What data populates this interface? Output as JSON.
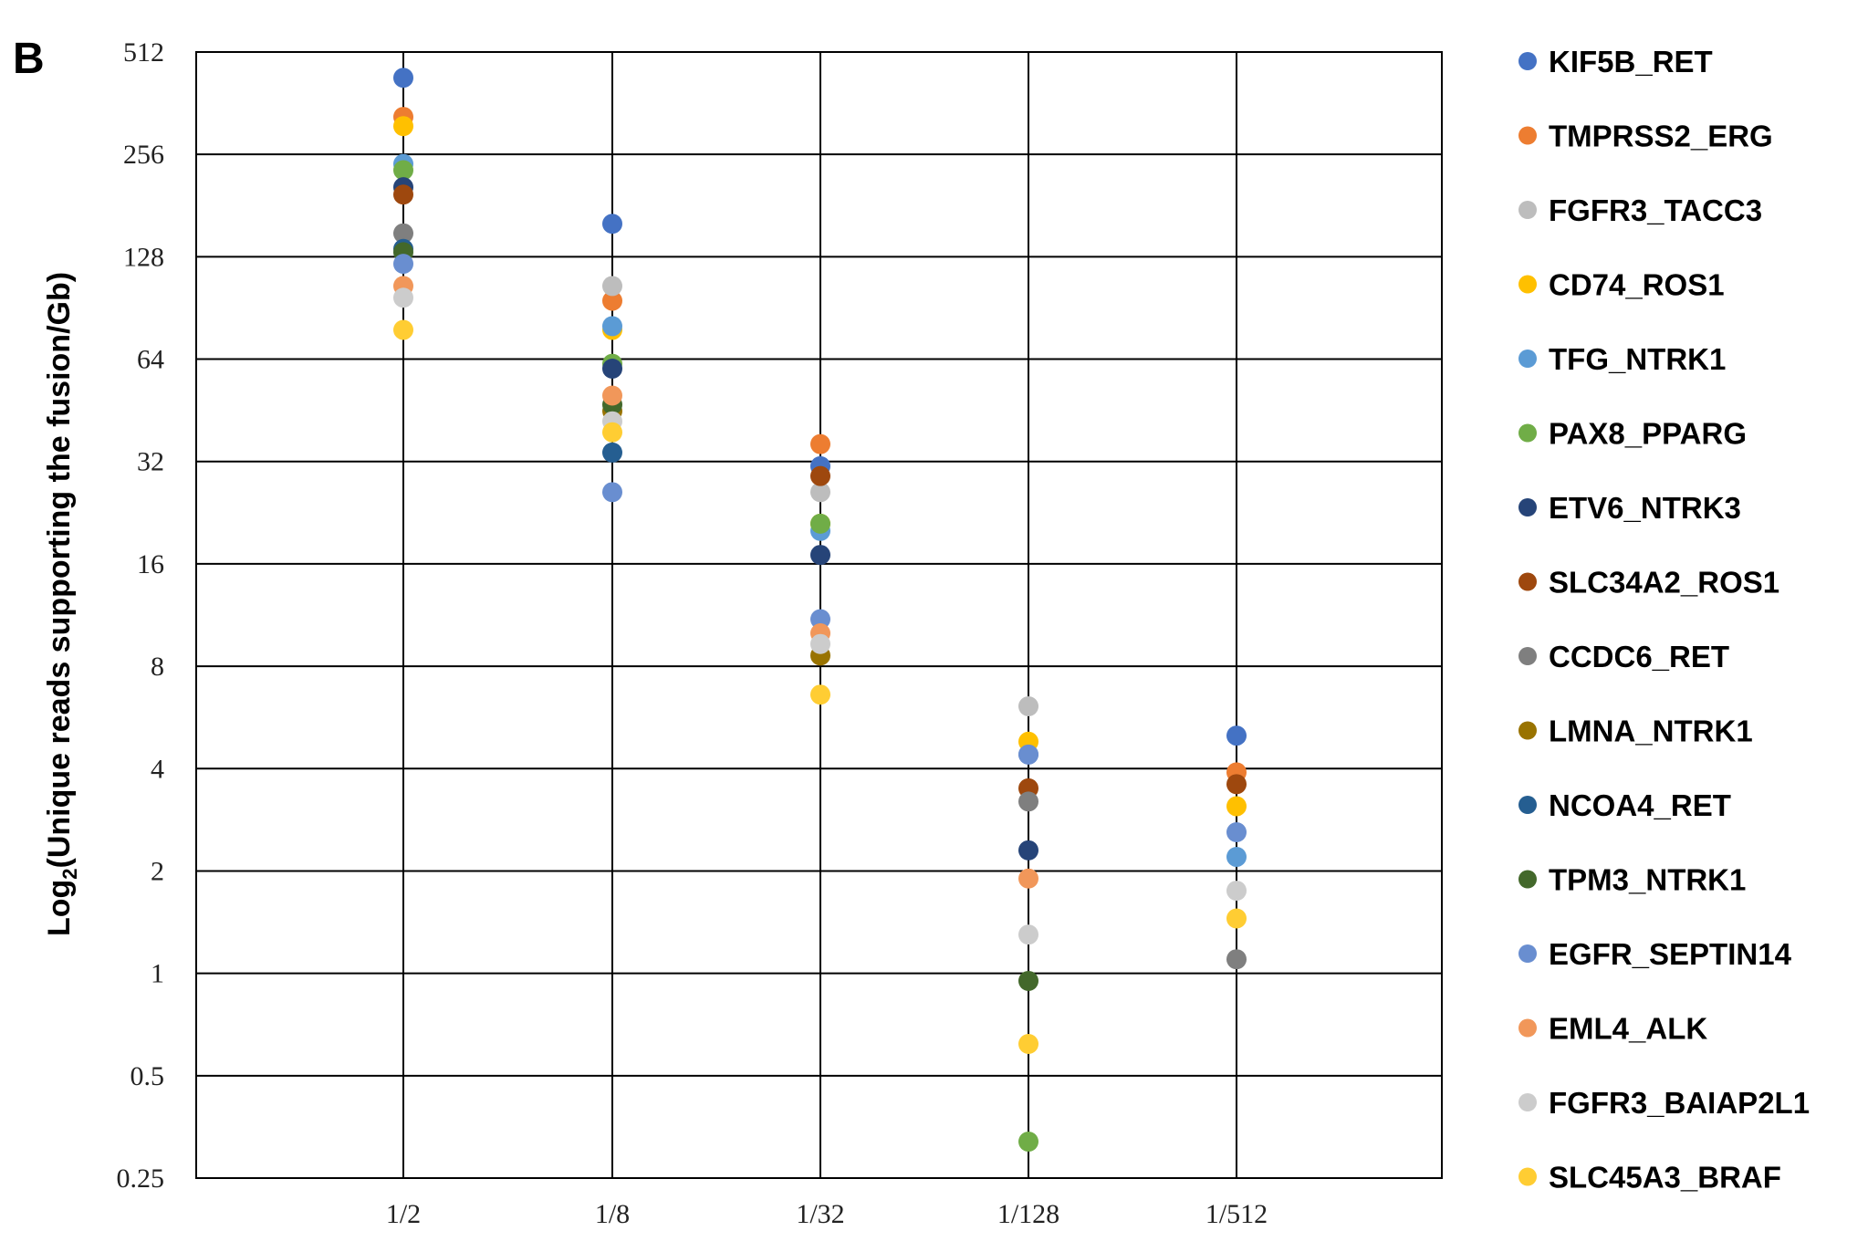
{
  "panel_label": "B",
  "chart_data": {
    "type": "scatter",
    "ylabel_prefix": "Log",
    "ylabel_sub": "2",
    "ylabel_rest": "(Unique reads supporting the fusion/Gb)",
    "y_scale": "log2",
    "ylim": [
      0.25,
      512
    ],
    "y_ticks": [
      "512",
      "256",
      "128",
      "64",
      "32",
      "16",
      "8",
      "4",
      "2",
      "1",
      "0.5",
      "0.25"
    ],
    "y_tick_values": [
      512,
      256,
      128,
      64,
      32,
      16,
      8,
      4,
      2,
      1,
      0.5,
      0.25
    ],
    "categories": [
      "1/2",
      "1/8",
      "1/32",
      "1/128",
      "1/512"
    ],
    "grid": true,
    "legend_position": "right",
    "series": [
      {
        "name": "KIF5B_RET",
        "color": "#4472C4",
        "values": [
          430,
          160,
          31,
          4.4,
          5.0
        ]
      },
      {
        "name": "TMPRSS2_ERG",
        "color": "#ED7D31",
        "values": [
          330,
          95,
          36,
          null,
          3.9
        ]
      },
      {
        "name": "FGFR3_TACC3",
        "color": "#BDBDBD",
        "values": [
          null,
          105,
          26,
          6.1,
          null
        ]
      },
      {
        "name": "CD74_ROS1",
        "color": "#FFC000",
        "values": [
          310,
          78,
          21,
          4.8,
          3.1
        ]
      },
      {
        "name": "TFG_NTRK1",
        "color": "#5B9BD5",
        "values": [
          240,
          80,
          20,
          null,
          2.2
        ]
      },
      {
        "name": "PAX8_PPARG",
        "color": "#70AD47",
        "values": [
          230,
          62,
          21,
          0.32,
          null
        ]
      },
      {
        "name": "ETV6_NTRK3",
        "color": "#264478",
        "values": [
          205,
          60,
          17,
          2.3,
          null
        ]
      },
      {
        "name": "SLC34A2_ROS1",
        "color": "#9E480E",
        "values": [
          195,
          null,
          29,
          3.5,
          3.6
        ]
      },
      {
        "name": "CCDC6_RET",
        "color": "#7F7F7F",
        "values": [
          150,
          null,
          null,
          3.2,
          1.1
        ]
      },
      {
        "name": "LMNA_NTRK1",
        "color": "#997300",
        "values": [
          null,
          45,
          8.6,
          null,
          null
        ]
      },
      {
        "name": "NCOA4_RET",
        "color": "#255E91",
        "values": [
          135,
          34,
          null,
          null,
          null
        ]
      },
      {
        "name": "TPM3_NTRK1",
        "color": "#43682B",
        "values": [
          132,
          47,
          null,
          0.95,
          null
        ]
      },
      {
        "name": "EGFR_SEPTIN14",
        "color": "#698ED0",
        "values": [
          122,
          26,
          11,
          4.4,
          2.6
        ]
      },
      {
        "name": "EML4_ALK",
        "color": "#F1975A",
        "values": [
          105,
          50,
          10,
          1.9,
          null
        ]
      },
      {
        "name": "FGFR3_BAIAP2L1",
        "color": "#CCCCCC",
        "values": [
          97,
          42,
          9.3,
          1.3,
          1.75
        ]
      },
      {
        "name": "SLC45A3_BRAF",
        "color": "#FFCD33",
        "values": [
          78,
          39,
          6.6,
          0.62,
          1.45
        ]
      }
    ]
  }
}
